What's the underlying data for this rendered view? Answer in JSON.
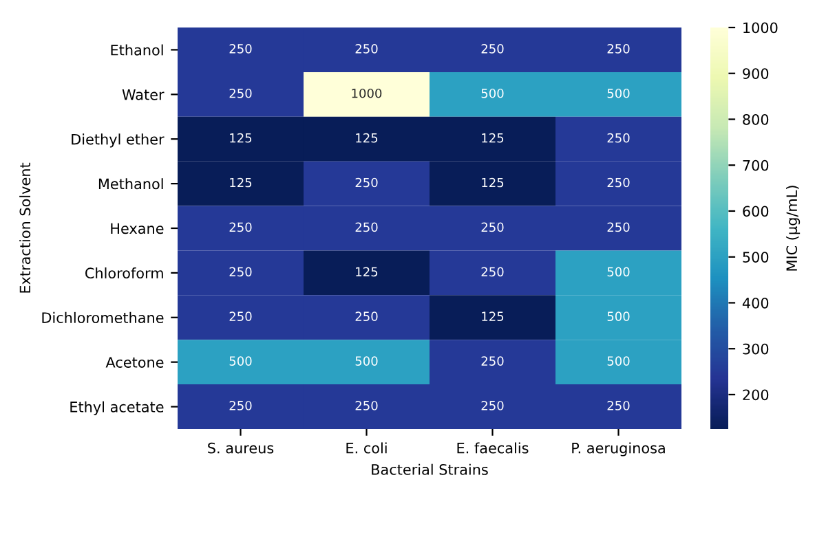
{
  "chart_data": {
    "type": "heatmap",
    "xlabel": "Bacterial Strains",
    "ylabel": "Extraction Solvent",
    "clabel": "MIC (µg/mL)",
    "categories": [
      "S. aureus",
      "E. coli",
      "E. faecalis",
      "P. aeruginosa"
    ],
    "y_categories": [
      "Ethanol",
      "Water",
      "Diethyl ether",
      "Methanol",
      "Hexane",
      "Chloroform",
      "Dichloromethane",
      "Acetone",
      "Ethyl acetate"
    ],
    "cells": [
      [
        250,
        250,
        250,
        250
      ],
      [
        250,
        1000,
        500,
        500
      ],
      [
        125,
        125,
        125,
        250
      ],
      [
        125,
        250,
        125,
        250
      ],
      [
        250,
        250,
        250,
        250
      ],
      [
        250,
        125,
        250,
        500
      ],
      [
        250,
        250,
        125,
        500
      ],
      [
        500,
        500,
        250,
        500
      ],
      [
        250,
        250,
        250,
        250
      ]
    ],
    "clim": [
      125,
      1000
    ],
    "cticks": [
      200,
      300,
      400,
      500,
      600,
      700,
      800,
      900,
      1000
    ],
    "data_labels": true
  }
}
